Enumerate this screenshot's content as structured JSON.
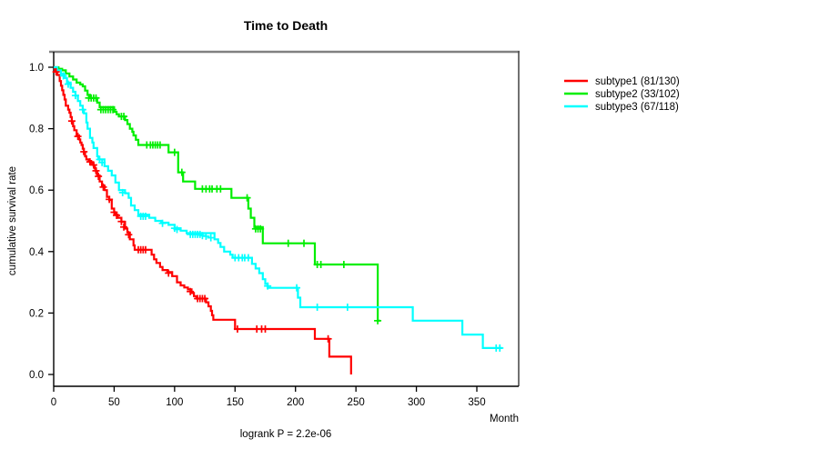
{
  "chart_data": {
    "type": "line",
    "plot_style": "kaplan-meier-step",
    "title": "Time to Death",
    "xlabel": "Month",
    "ylabel": "cumulative survival rate",
    "annotation": "logrank P = 2.2e-06",
    "x_ticks": [
      0,
      50,
      100,
      150,
      200,
      250,
      300,
      350
    ],
    "y_ticks": [
      1.0,
      0.8,
      0.6,
      0.4,
      0.2,
      0.0
    ],
    "xlim": [
      0,
      385
    ],
    "ylim": [
      0,
      1
    ],
    "grid": false,
    "legend_position": "right-outside",
    "series": [
      {
        "name": "subtype1",
        "label": "subtype1 (81/130)",
        "color": "#ff0000",
        "events": "81/130",
        "end_month": 246,
        "points": [
          [
            0,
            1
          ],
          [
            1,
            0.99
          ],
          [
            3,
            0.975
          ],
          [
            5,
            0.955
          ],
          [
            6,
            0.94
          ],
          [
            7,
            0.925
          ],
          [
            8,
            0.91
          ],
          [
            9,
            0.895
          ],
          [
            10,
            0.875
          ],
          [
            12,
            0.862
          ],
          [
            13,
            0.852
          ],
          [
            14,
            0.838
          ],
          [
            15,
            0.82
          ],
          [
            16,
            0.808
          ],
          [
            17,
            0.795
          ],
          [
            19,
            0.778
          ],
          [
            21,
            0.765
          ],
          [
            22,
            0.755
          ],
          [
            23,
            0.747
          ],
          [
            24,
            0.735
          ],
          [
            25,
            0.72
          ],
          [
            26,
            0.71
          ],
          [
            27,
            0.7
          ],
          [
            29,
            0.695
          ],
          [
            31,
            0.688
          ],
          [
            33,
            0.68
          ],
          [
            34,
            0.67
          ],
          [
            35,
            0.66
          ],
          [
            36,
            0.648
          ],
          [
            38,
            0.628
          ],
          [
            40,
            0.615
          ],
          [
            42,
            0.6
          ],
          [
            44,
            0.578
          ],
          [
            46,
            0.568
          ],
          [
            48,
            0.54
          ],
          [
            50,
            0.528
          ],
          [
            51,
            0.52
          ],
          [
            53,
            0.51
          ],
          [
            56,
            0.497
          ],
          [
            59,
            0.475
          ],
          [
            61,
            0.462
          ],
          [
            63,
            0.44
          ],
          [
            66,
            0.42
          ],
          [
            67,
            0.406
          ],
          [
            81,
            0.39
          ],
          [
            83,
            0.375
          ],
          [
            85,
            0.363
          ],
          [
            88,
            0.35
          ],
          [
            90,
            0.34
          ],
          [
            94,
            0.333
          ],
          [
            98,
            0.32
          ],
          [
            102,
            0.3
          ],
          [
            105,
            0.29
          ],
          [
            108,
            0.283
          ],
          [
            111,
            0.277
          ],
          [
            114,
            0.265
          ],
          [
            116,
            0.255
          ],
          [
            118,
            0.247
          ],
          [
            126,
            0.235
          ],
          [
            128,
            0.222
          ],
          [
            130,
            0.207
          ],
          [
            131,
            0.193
          ],
          [
            132,
            0.178
          ],
          [
            150,
            0.148
          ],
          [
            216,
            0.116
          ],
          [
            228,
            0.058
          ],
          [
            246,
            0
          ]
        ],
        "censors": [
          [
            2,
            0.985
          ],
          [
            15,
            0.825
          ],
          [
            20,
            0.775
          ],
          [
            25,
            0.725
          ],
          [
            30,
            0.692
          ],
          [
            33,
            0.682
          ],
          [
            35,
            0.663
          ],
          [
            37,
            0.645
          ],
          [
            41,
            0.61
          ],
          [
            46,
            0.57
          ],
          [
            50,
            0.528
          ],
          [
            52,
            0.518
          ],
          [
            56,
            0.498
          ],
          [
            58,
            0.48
          ],
          [
            62,
            0.455
          ],
          [
            70,
            0.406
          ],
          [
            72,
            0.406
          ],
          [
            74,
            0.406
          ],
          [
            76,
            0.406
          ],
          [
            95,
            0.33
          ],
          [
            113,
            0.27
          ],
          [
            119,
            0.247
          ],
          [
            121,
            0.247
          ],
          [
            123,
            0.247
          ],
          [
            125,
            0.247
          ],
          [
            152,
            0.148
          ],
          [
            168,
            0.148
          ],
          [
            172,
            0.148
          ],
          [
            175,
            0.148
          ],
          [
            227,
            0.116
          ]
        ]
      },
      {
        "name": "subtype2",
        "label": "subtype2 (33/102)",
        "color": "#00ee00",
        "events": "33/102",
        "end_month": 270,
        "points": [
          [
            0,
            1
          ],
          [
            4,
            0.995
          ],
          [
            7,
            0.99
          ],
          [
            10,
            0.98
          ],
          [
            13,
            0.97
          ],
          [
            16,
            0.96
          ],
          [
            19,
            0.95
          ],
          [
            22,
            0.944
          ],
          [
            24,
            0.938
          ],
          [
            26,
            0.924
          ],
          [
            28,
            0.91
          ],
          [
            30,
            0.9
          ],
          [
            36,
            0.885
          ],
          [
            38,
            0.87
          ],
          [
            50,
            0.855
          ],
          [
            52,
            0.847
          ],
          [
            54,
            0.84
          ],
          [
            59,
            0.828
          ],
          [
            61,
            0.815
          ],
          [
            63,
            0.8
          ],
          [
            65,
            0.79
          ],
          [
            66,
            0.778
          ],
          [
            68,
            0.764
          ],
          [
            70,
            0.747
          ],
          [
            95,
            0.723
          ],
          [
            103,
            0.658
          ],
          [
            107,
            0.628
          ],
          [
            117,
            0.604
          ],
          [
            147,
            0.575
          ],
          [
            161,
            0.54
          ],
          [
            163,
            0.51
          ],
          [
            166,
            0.48
          ],
          [
            173,
            0.427
          ],
          [
            216,
            0.358
          ],
          [
            268,
            0.175
          ]
        ],
        "censors": [
          [
            29,
            0.9
          ],
          [
            31,
            0.9
          ],
          [
            33,
            0.9
          ],
          [
            35,
            0.9
          ],
          [
            39,
            0.862
          ],
          [
            41,
            0.862
          ],
          [
            43,
            0.862
          ],
          [
            45,
            0.862
          ],
          [
            47,
            0.862
          ],
          [
            49,
            0.862
          ],
          [
            56,
            0.84
          ],
          [
            58,
            0.84
          ],
          [
            77,
            0.747
          ],
          [
            80,
            0.747
          ],
          [
            82,
            0.747
          ],
          [
            84,
            0.747
          ],
          [
            86,
            0.747
          ],
          [
            88,
            0.747
          ],
          [
            100,
            0.723
          ],
          [
            106,
            0.658
          ],
          [
            123,
            0.604
          ],
          [
            126,
            0.604
          ],
          [
            129,
            0.604
          ],
          [
            131,
            0.604
          ],
          [
            135,
            0.604
          ],
          [
            138,
            0.604
          ],
          [
            160,
            0.575
          ],
          [
            167,
            0.474
          ],
          [
            169,
            0.474
          ],
          [
            171,
            0.474
          ],
          [
            194,
            0.427
          ],
          [
            207,
            0.427
          ],
          [
            218,
            0.358
          ],
          [
            221,
            0.358
          ],
          [
            240,
            0.358
          ],
          [
            268,
            0.175
          ]
        ]
      },
      {
        "name": "subtype3",
        "label": "subtype3 (67/118)",
        "color": "#00ffff",
        "events": "67/118",
        "end_month": 371,
        "points": [
          [
            0,
            1
          ],
          [
            3,
            0.99
          ],
          [
            6,
            0.978
          ],
          [
            9,
            0.965
          ],
          [
            11,
            0.95
          ],
          [
            14,
            0.933
          ],
          [
            16,
            0.92
          ],
          [
            18,
            0.908
          ],
          [
            20,
            0.89
          ],
          [
            22,
            0.875
          ],
          [
            24,
            0.862
          ],
          [
            25,
            0.85
          ],
          [
            27,
            0.82
          ],
          [
            28,
            0.8
          ],
          [
            30,
            0.77
          ],
          [
            32,
            0.755
          ],
          [
            33,
            0.737
          ],
          [
            36,
            0.71
          ],
          [
            37,
            0.7
          ],
          [
            42,
            0.678
          ],
          [
            45,
            0.663
          ],
          [
            48,
            0.648
          ],
          [
            51,
            0.625
          ],
          [
            54,
            0.6
          ],
          [
            59,
            0.59
          ],
          [
            62,
            0.575
          ],
          [
            64,
            0.55
          ],
          [
            67,
            0.535
          ],
          [
            70,
            0.52
          ],
          [
            79,
            0.51
          ],
          [
            84,
            0.5
          ],
          [
            89,
            0.494
          ],
          [
            95,
            0.487
          ],
          [
            100,
            0.476
          ],
          [
            105,
            0.468
          ],
          [
            110,
            0.46
          ],
          [
            133,
            0.44
          ],
          [
            136,
            0.428
          ],
          [
            138,
            0.415
          ],
          [
            141,
            0.4
          ],
          [
            146,
            0.39
          ],
          [
            148,
            0.38
          ],
          [
            164,
            0.36
          ],
          [
            167,
            0.345
          ],
          [
            170,
            0.33
          ],
          [
            173,
            0.31
          ],
          [
            175,
            0.295
          ],
          [
            177,
            0.282
          ],
          [
            202,
            0.25
          ],
          [
            204,
            0.219
          ],
          [
            297,
            0.175
          ],
          [
            338,
            0.13
          ],
          [
            355,
            0.086
          ]
        ],
        "censors": [
          [
            8,
            0.972
          ],
          [
            12,
            0.945
          ],
          [
            18,
            0.908
          ],
          [
            24,
            0.862
          ],
          [
            38,
            0.7
          ],
          [
            40,
            0.69
          ],
          [
            57,
            0.592
          ],
          [
            72,
            0.515
          ],
          [
            74,
            0.515
          ],
          [
            76,
            0.515
          ],
          [
            90,
            0.492
          ],
          [
            100,
            0.476
          ],
          [
            102,
            0.472
          ],
          [
            113,
            0.456
          ],
          [
            115,
            0.456
          ],
          [
            117,
            0.456
          ],
          [
            119,
            0.456
          ],
          [
            121,
            0.456
          ],
          [
            123,
            0.452
          ],
          [
            126,
            0.45
          ],
          [
            130,
            0.445
          ],
          [
            150,
            0.38
          ],
          [
            153,
            0.38
          ],
          [
            156,
            0.38
          ],
          [
            158,
            0.38
          ],
          [
            161,
            0.38
          ],
          [
            177,
            0.288
          ],
          [
            201,
            0.282
          ],
          [
            218,
            0.219
          ],
          [
            243,
            0.219
          ],
          [
            366,
            0.086
          ],
          [
            369,
            0.086
          ]
        ]
      }
    ]
  },
  "colors": {
    "background": "#ffffff",
    "axis": "#000000",
    "box_top": "#808080",
    "box_right": "#4d4d4d",
    "text": "#000000"
  }
}
